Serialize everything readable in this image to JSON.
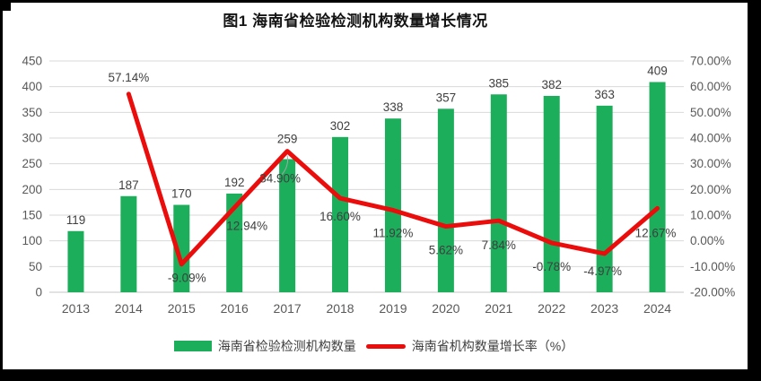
{
  "title": "图1 海南省检验检测机构数量增长情况",
  "legend": {
    "bar_label": "海南省检验检测机构数量",
    "line_label": "海南省机构数量增长率（%）"
  },
  "colors": {
    "bar": "#1CAE5B",
    "line": "#EB0C0C",
    "grid": "#D9D9D9",
    "baseline": "#C6C6C6",
    "axis_text": "#595959",
    "data_label": "#3F3F3F",
    "leader": "#A6A6A6",
    "background": "#FFFFFF",
    "frame": "#000000"
  },
  "chart_data": {
    "type": "combo",
    "title": "图1 海南省检验检测机构数量增长情况",
    "categories": [
      "2013",
      "2014",
      "2015",
      "2016",
      "2017",
      "2018",
      "2019",
      "2020",
      "2021",
      "2022",
      "2023",
      "2024"
    ],
    "series": [
      {
        "name": "海南省检验检测机构数量",
        "type": "bar",
        "axis": "left",
        "color": "#1CAE5B",
        "values": [
          119,
          187,
          170,
          192,
          259,
          302,
          338,
          357,
          385,
          382,
          363,
          409
        ],
        "labels": [
          "119",
          "187",
          "170",
          "192",
          "259",
          "302",
          "338",
          "357",
          "385",
          "382",
          "363",
          "409"
        ]
      },
      {
        "name": "海南省机构数量增长率（%）",
        "type": "line",
        "axis": "right",
        "color": "#EB0C0C",
        "values": [
          null,
          57.14,
          -9.09,
          12.94,
          34.9,
          16.6,
          11.92,
          5.62,
          7.84,
          -0.78,
          -4.97,
          12.67
        ],
        "labels": [
          "",
          "57.14%",
          "-9.09%",
          "12.94%",
          "34.90%",
          "16.60%",
          "11.92%",
          "5.62%",
          "7.84%",
          "-0.78%",
          "-4.97%",
          "12.67%"
        ]
      }
    ],
    "left_axis": {
      "min": 0,
      "max": 450,
      "step": 50,
      "ticks": [
        "0",
        "50",
        "100",
        "150",
        "200",
        "250",
        "300",
        "350",
        "400",
        "450"
      ]
    },
    "right_axis": {
      "min": -20,
      "max": 70,
      "step": 10,
      "ticks": [
        "-20.00%",
        "-10.00%",
        "0.00%",
        "10.00%",
        "20.00%",
        "30.00%",
        "40.00%",
        "50.00%",
        "60.00%",
        "70.00%"
      ]
    },
    "grid": true,
    "legend_position": "bottom"
  }
}
